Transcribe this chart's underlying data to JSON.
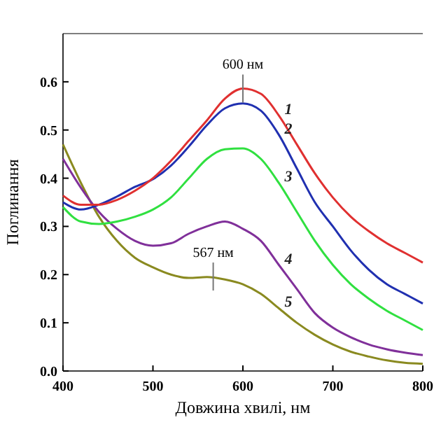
{
  "chart_data": {
    "type": "line",
    "xlabel": "Довжина хвилі, нм",
    "ylabel": "Поглинання",
    "xlim": [
      400,
      800
    ],
    "xticks": [
      400,
      500,
      600,
      700,
      800
    ],
    "ylim": [
      0,
      0.7
    ],
    "yticks": [
      {
        "value": 0,
        "label": "0.0"
      },
      0.1,
      0.2,
      0.3,
      0.4,
      0.5,
      0.6
    ],
    "grid": false,
    "marker": "none",
    "line_style": "solid",
    "x": [
      400,
      420,
      440,
      460,
      480,
      500,
      520,
      540,
      560,
      580,
      600,
      620,
      640,
      660,
      680,
      700,
      720,
      740,
      760,
      780,
      800
    ],
    "series": [
      {
        "name": "1",
        "color": "#e03030",
        "values": [
          0.364,
          0.345,
          0.345,
          0.355,
          0.374,
          0.4,
          0.436,
          0.478,
          0.52,
          0.565,
          0.586,
          0.575,
          0.53,
          0.47,
          0.41,
          0.36,
          0.32,
          0.29,
          0.265,
          0.245,
          0.225
        ]
      },
      {
        "name": "2",
        "color": "#2030b0",
        "values": [
          0.35,
          0.335,
          0.345,
          0.362,
          0.382,
          0.398,
          0.426,
          0.466,
          0.51,
          0.545,
          0.555,
          0.54,
          0.49,
          0.42,
          0.35,
          0.3,
          0.25,
          0.21,
          0.18,
          0.16,
          0.14
        ]
      },
      {
        "name": "3",
        "color": "#30e040",
        "values": [
          0.34,
          0.31,
          0.305,
          0.31,
          0.32,
          0.335,
          0.36,
          0.4,
          0.44,
          0.46,
          0.462,
          0.44,
          0.39,
          0.33,
          0.27,
          0.22,
          0.18,
          0.15,
          0.125,
          0.105,
          0.085
        ]
      },
      {
        "name": "4",
        "color": "#80309a",
        "values": [
          0.44,
          0.38,
          0.33,
          0.295,
          0.27,
          0.26,
          0.265,
          0.285,
          0.3,
          0.31,
          0.295,
          0.27,
          0.22,
          0.17,
          0.12,
          0.09,
          0.07,
          0.055,
          0.045,
          0.038,
          0.033
        ]
      },
      {
        "name": "5",
        "color": "#8a8a20",
        "values": [
          0.47,
          0.39,
          0.32,
          0.27,
          0.235,
          0.215,
          0.2,
          0.193,
          0.195,
          0.19,
          0.18,
          0.16,
          0.13,
          0.1,
          0.075,
          0.055,
          0.04,
          0.03,
          0.022,
          0.017,
          0.015
        ]
      }
    ],
    "annotations": [
      {
        "text": "600 нм",
        "x": 600,
        "y": 0.586
      },
      {
        "text": "567 нм",
        "x": 567,
        "y": 0.196
      }
    ]
  }
}
